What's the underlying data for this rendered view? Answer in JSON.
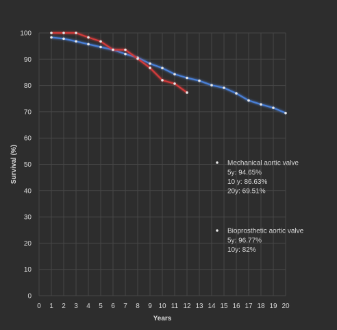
{
  "chart_data": {
    "type": "line",
    "title": "",
    "xlabel": "Years",
    "ylabel": "Survival (%)",
    "xlim": [
      0,
      20
    ],
    "ylim": [
      0,
      100
    ],
    "x_ticks": [
      0,
      1,
      2,
      3,
      4,
      5,
      6,
      7,
      8,
      9,
      10,
      11,
      12,
      13,
      14,
      15,
      16,
      17,
      18,
      19,
      20
    ],
    "y_ticks": [
      0,
      10,
      20,
      30,
      40,
      50,
      60,
      70,
      80,
      90,
      100
    ],
    "grid": true,
    "legend_position": "right",
    "series": [
      {
        "name": "Mechanical aortic valve",
        "color": "#4a7fd6",
        "x": [
          1,
          2,
          3,
          4,
          5,
          6,
          7,
          8,
          9,
          10,
          11,
          12,
          13,
          14,
          15,
          16,
          17,
          18,
          19,
          20
        ],
        "y": [
          98.3,
          97.8,
          96.8,
          95.7,
          94.65,
          93.6,
          92.0,
          90.6,
          88.3,
          86.63,
          84.3,
          82.9,
          81.8,
          80.1,
          79.1,
          77.0,
          74.3,
          72.8,
          71.5,
          69.51
        ],
        "annotations": [
          "5y: 94.65%",
          "10 y: 86.63%",
          "20y: 69.51%"
        ]
      },
      {
        "name": "Bioprosthetic aortic valve",
        "color": "#d23b3b",
        "x": [
          1,
          2,
          3,
          4,
          5,
          6,
          7,
          8,
          9,
          10,
          11,
          12
        ],
        "y": [
          100,
          100,
          100,
          98.3,
          96.77,
          93.6,
          93.6,
          90.2,
          86.7,
          82,
          80.7,
          77.3
        ],
        "annotations": [
          "5y: 96.77%",
          "10y: 82%"
        ]
      }
    ]
  }
}
